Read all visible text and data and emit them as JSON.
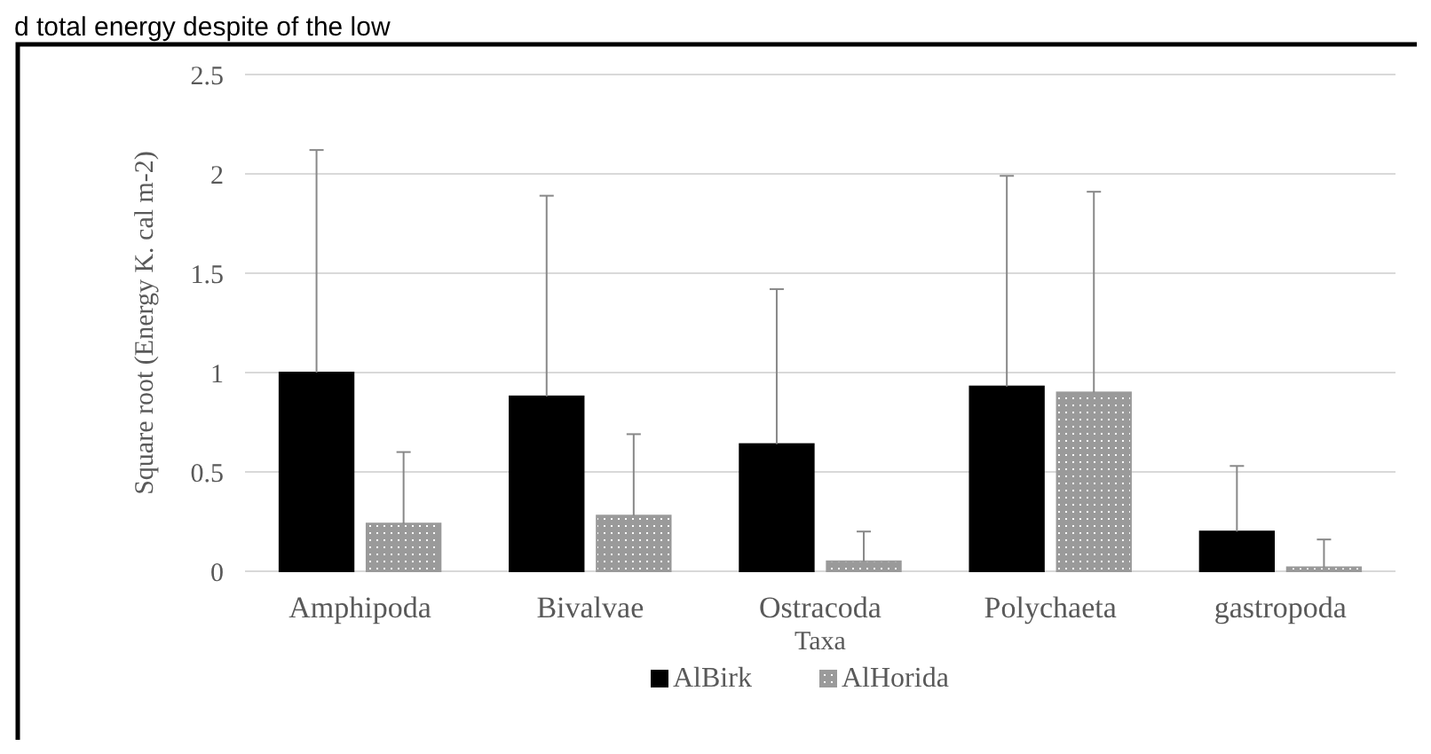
{
  "chart_data": {
    "type": "bar",
    "xlabel": "Taxa",
    "ylabel": "Square root (Energy K. cal m-2)",
    "annotations": [
      "d total energy despite of the low"
    ],
    "categories": [
      "Amphipoda",
      "Bivalvae",
      "Ostracoda",
      "Polychaeta",
      "gastropoda"
    ],
    "series": [
      {
        "name": "AlBirk",
        "color": "#000000",
        "values": [
          1.0,
          0.88,
          0.64,
          0.93,
          0.2
        ],
        "errors": [
          [
            1.0,
            2.12
          ],
          [
            0.88,
            1.89
          ],
          [
            0.64,
            1.42
          ],
          [
            0.93,
            1.99
          ],
          [
            0.2,
            0.53
          ]
        ]
      },
      {
        "name": "AlHorida",
        "color": "#9a9a9a",
        "values": [
          0.24,
          0.28,
          0.05,
          0.9,
          0.02
        ],
        "errors": [
          [
            0.24,
            0.6
          ],
          [
            0.28,
            0.69
          ],
          [
            0.05,
            0.2
          ],
          [
            0.9,
            1.91
          ],
          [
            0.02,
            0.16
          ]
        ]
      }
    ],
    "ylim": [
      0,
      2.5
    ],
    "yticks": [
      0,
      0.5,
      1,
      1.5,
      2,
      2.5
    ],
    "grid": "y",
    "legend": "bottom"
  }
}
